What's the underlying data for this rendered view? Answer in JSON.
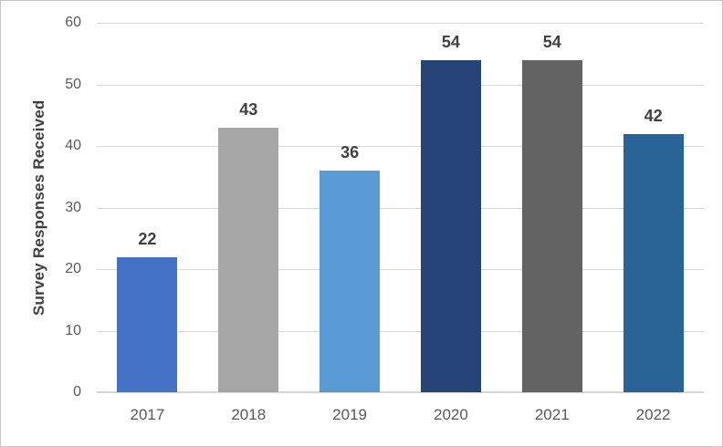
{
  "chart_data": {
    "type": "bar",
    "categories": [
      "2017",
      "2018",
      "2019",
      "2020",
      "2021",
      "2022"
    ],
    "values": [
      22,
      43,
      36,
      54,
      54,
      42
    ],
    "data_labels": [
      "22",
      "43",
      "36",
      "54",
      "54",
      "42"
    ],
    "title": "",
    "xlabel": "",
    "ylabel": "Survey Responses Received",
    "ylim": [
      0,
      60
    ],
    "yticks": [
      0,
      10,
      20,
      30,
      40,
      50,
      60
    ],
    "grid": true,
    "legend": false,
    "bar_colors": [
      "#4472C4",
      "#A6A6A6",
      "#5B9BD5",
      "#264478",
      "#636363",
      "#2A6396"
    ]
  },
  "colors": {
    "grid_line": "#D9D9D9",
    "axis_line": "#D6D6D6",
    "tick_label": "#595959",
    "data_label": "#404040",
    "axis_title": "#404040",
    "background": "#FFFFFF",
    "border": "#C8C6C4"
  }
}
